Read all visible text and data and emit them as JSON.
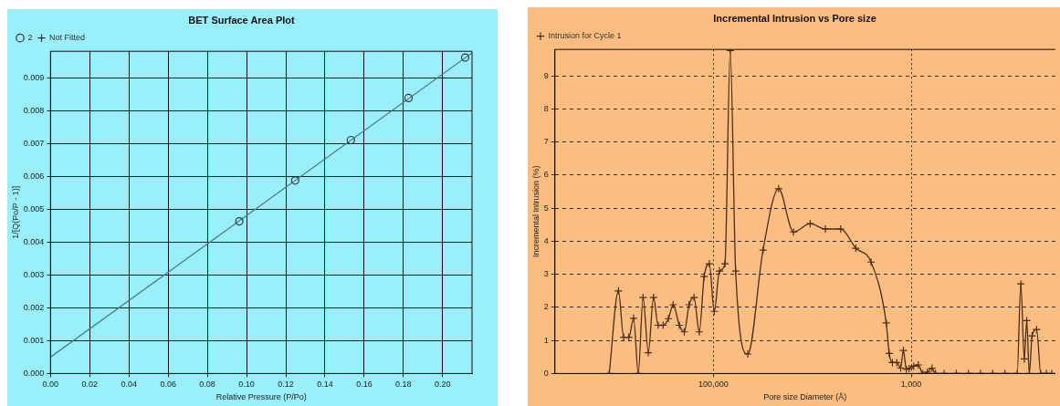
{
  "chart_data": [
    {
      "type": "scatter",
      "title": "BET Surface Area Plot",
      "xlabel": "Relative Pressure (P/Po)",
      "ylabel": "1/[Q(Po/P - 1)]",
      "xlim": [
        0,
        0.215
      ],
      "ylim": [
        0,
        0.0098
      ],
      "xticks": [
        {
          "value": 0,
          "label": "0.00"
        },
        {
          "value": 0.02,
          "label": "0.02"
        },
        {
          "value": 0.04,
          "label": "0.04"
        },
        {
          "value": 0.06,
          "label": "0.06"
        },
        {
          "value": 0.08,
          "label": "0.08"
        },
        {
          "value": 0.1,
          "label": "0.10"
        },
        {
          "value": 0.12,
          "label": "0.12"
        },
        {
          "value": 0.14,
          "label": "0.14"
        },
        {
          "value": 0.16,
          "label": "0.16"
        },
        {
          "value": 0.18,
          "label": "0.18"
        },
        {
          "value": 0.2,
          "label": "0.20"
        }
      ],
      "yticks": [
        {
          "value": 0,
          "label": "0.000"
        },
        0.001,
        0.002,
        0.003,
        0.004,
        0.005,
        0.006,
        0.007,
        0.008,
        0.009
      ],
      "grid": true,
      "legend": "top left",
      "series": [
        {
          "name": "2",
          "type": "scatter",
          "marker": "circle",
          "color": "#333333",
          "x": [
            0.0963,
            0.1248,
            0.1532,
            0.1826,
            0.2115
          ],
          "values": [
            0.00463,
            0.00587,
            0.0071,
            0.00838,
            0.00961
          ]
        },
        {
          "name": "Not Fitted",
          "type": "scatter",
          "marker": "cross",
          "color": "#333333"
        },
        {
          "type": "line",
          "marker": "none",
          "color": "#4f7f86",
          "x": [
            0,
            0.215
          ],
          "values": [
            0.0005,
            0.00975
          ]
        }
      ]
    },
    {
      "type": "line",
      "title": "Incremental Intrusion vs Pore size",
      "xlabel": "Pore size Diameter (Å)",
      "ylabel": "Incremental Intrusion (%)",
      "log": "x",
      "xlim": [
        4000000,
        35
      ],
      "ylim": [
        0,
        9.8
      ],
      "xticks": [
        {
          "value": 100000,
          "label": "100,000"
        },
        {
          "value": 1000,
          "label": "1,000"
        }
      ],
      "yticks": [
        0,
        1,
        2,
        3,
        4,
        5,
        6,
        7,
        8,
        9
      ],
      "grid": true,
      "legend": "top left",
      "marker": "cross",
      "series": [
        {
          "name": "Intrusion for Cycle 1",
          "color": "#4a2e18",
          "x": [
            1130000,
            912000,
            807000,
            716000,
            640000,
            575000,
            514000,
            455000,
            403000,
            362000,
            322000,
            285000,
            255000,
            221000,
            197000,
            176000,
            157000,
            139000,
            124000,
            110000,
            98000,
            86700,
            76400,
            67600,
            59600,
            44900,
            31500,
            21900,
            15500,
            10500,
            7380,
            5160,
            3630,
            2550,
            1790,
            1670,
            1550,
            1400,
            1280,
            1200,
            1120,
            1050,
            944,
            849,
            764,
            687,
            617,
            568,
            465,
            350,
            264,
            199,
            150,
            113,
            85,
            78,
            72,
            68,
            64,
            60,
            54,
            49,
            43,
            38
          ],
          "values": [
            0,
            2.5,
            1.1,
            1.1,
            1.67,
            0,
            2.3,
            0.63,
            2.3,
            1.46,
            1.46,
            1.66,
            2.08,
            1.46,
            1.26,
            2.08,
            2.3,
            1.26,
            2.93,
            3.32,
            1.88,
            3.1,
            3.32,
            9.77,
            3.1,
            0.59,
            3.73,
            5.59,
            4.28,
            4.53,
            4.37,
            4.37,
            3.79,
            3.37,
            1.53,
            0.61,
            0.33,
            0.33,
            0.17,
            0.7,
            0.13,
            0.15,
            0.22,
            0.26,
            0,
            0.04,
            0.16,
            0,
            0,
            0,
            0,
            0,
            0,
            0,
            0,
            2.71,
            0.44,
            1.6,
            0,
            1.14,
            1.33,
            0,
            0,
            0
          ]
        }
      ]
    }
  ]
}
